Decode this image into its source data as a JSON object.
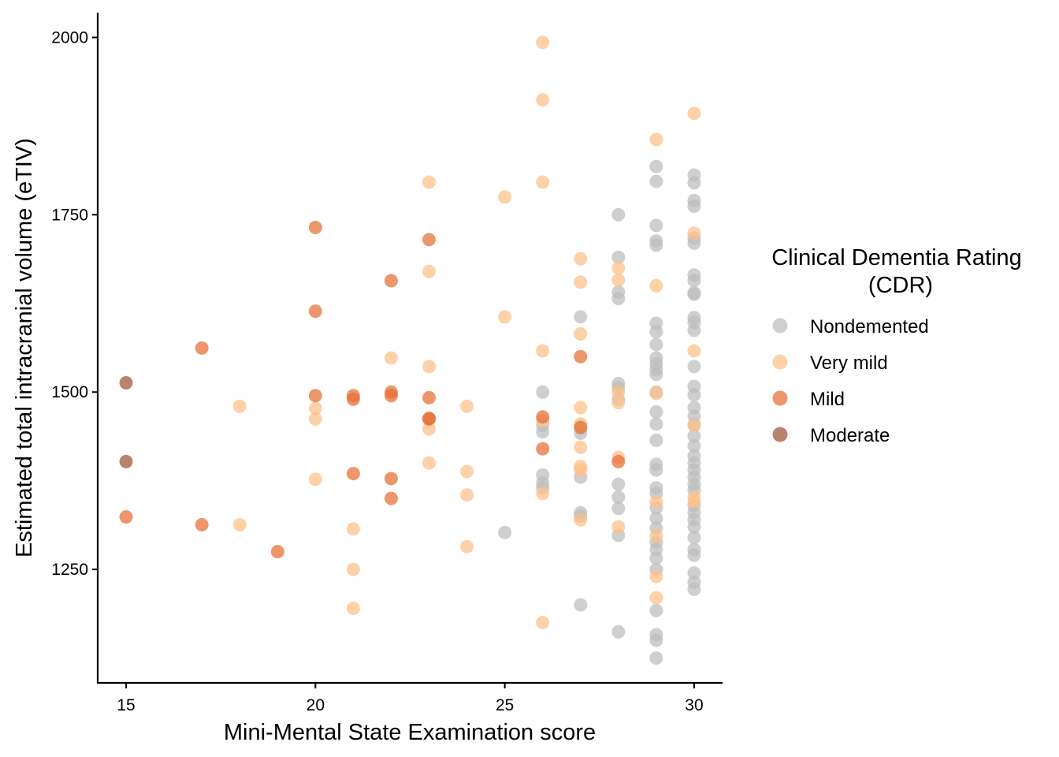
{
  "chart_data": {
    "type": "scatter",
    "xlabel": "Mini-Mental State Examination score",
    "ylabel": "Estimated total intracranial volume (eTIV)",
    "xlim": [
      14.25,
      30.75
    ],
    "ylim": [
      1090,
      2035
    ],
    "x_ticks": [
      15,
      20,
      25,
      30
    ],
    "y_ticks": [
      1250,
      1500,
      1750,
      2000
    ],
    "grid": false,
    "legend": {
      "title_line1": "Clinical Dementia Rating",
      "title_line2": "(CDR)",
      "position": "right"
    },
    "series": [
      {
        "name": "Nondemented",
        "color": "#bdbdbd",
        "points": [
          [
            25,
            1302
          ],
          [
            26,
            1500
          ],
          [
            26,
            1453
          ],
          [
            26,
            1444
          ],
          [
            26,
            1383
          ],
          [
            26,
            1372
          ],
          [
            26,
            1365
          ],
          [
            27,
            1606
          ],
          [
            27,
            1452
          ],
          [
            27,
            1442
          ],
          [
            27,
            1380
          ],
          [
            27,
            1330
          ],
          [
            27,
            1325
          ],
          [
            27,
            1200
          ],
          [
            28,
            1750
          ],
          [
            28,
            1690
          ],
          [
            28,
            1641
          ],
          [
            28,
            1632
          ],
          [
            28,
            1512
          ],
          [
            28,
            1506
          ],
          [
            28,
            1490
          ],
          [
            28,
            1370
          ],
          [
            28,
            1352
          ],
          [
            28,
            1336
          ],
          [
            28,
            1298
          ],
          [
            28,
            1162
          ],
          [
            29,
            1818
          ],
          [
            29,
            1797
          ],
          [
            29,
            1735
          ],
          [
            29,
            1713
          ],
          [
            29,
            1707
          ],
          [
            29,
            1597
          ],
          [
            29,
            1585
          ],
          [
            29,
            1567
          ],
          [
            29,
            1548
          ],
          [
            29,
            1540
          ],
          [
            29,
            1532
          ],
          [
            29,
            1525
          ],
          [
            29,
            1500
          ],
          [
            29,
            1472
          ],
          [
            29,
            1455
          ],
          [
            29,
            1432
          ],
          [
            29,
            1398
          ],
          [
            29,
            1390
          ],
          [
            29,
            1365
          ],
          [
            29,
            1357
          ],
          [
            29,
            1337
          ],
          [
            29,
            1322
          ],
          [
            29,
            1308
          ],
          [
            29,
            1288
          ],
          [
            29,
            1278
          ],
          [
            29,
            1266
          ],
          [
            29,
            1250
          ],
          [
            29,
            1192
          ],
          [
            29,
            1158
          ],
          [
            29,
            1150
          ],
          [
            29,
            1125
          ],
          [
            30,
            1806
          ],
          [
            30,
            1795
          ],
          [
            30,
            1770
          ],
          [
            30,
            1762
          ],
          [
            30,
            1717
          ],
          [
            30,
            1710
          ],
          [
            30,
            1665
          ],
          [
            30,
            1657
          ],
          [
            30,
            1640
          ],
          [
            30,
            1638
          ],
          [
            30,
            1605
          ],
          [
            30,
            1598
          ],
          [
            30,
            1587
          ],
          [
            30,
            1536
          ],
          [
            30,
            1508
          ],
          [
            30,
            1496
          ],
          [
            30,
            1478
          ],
          [
            30,
            1466
          ],
          [
            30,
            1454
          ],
          [
            30,
            1438
          ],
          [
            30,
            1424
          ],
          [
            30,
            1410
          ],
          [
            30,
            1400
          ],
          [
            30,
            1390
          ],
          [
            30,
            1380
          ],
          [
            30,
            1370
          ],
          [
            30,
            1362
          ],
          [
            30,
            1340
          ],
          [
            30,
            1330
          ],
          [
            30,
            1320
          ],
          [
            30,
            1310
          ],
          [
            30,
            1295
          ],
          [
            30,
            1278
          ],
          [
            30,
            1270
          ],
          [
            30,
            1245
          ],
          [
            30,
            1232
          ],
          [
            30,
            1222
          ]
        ]
      },
      {
        "name": "Very mild",
        "color": "#fdbf86",
        "points": [
          [
            18,
            1480
          ],
          [
            18,
            1313
          ],
          [
            20,
            1477
          ],
          [
            20,
            1462
          ],
          [
            20,
            1377
          ],
          [
            21,
            1307
          ],
          [
            21,
            1250
          ],
          [
            21,
            1195
          ],
          [
            22,
            1548
          ],
          [
            23,
            1796
          ],
          [
            23,
            1670
          ],
          [
            23,
            1536
          ],
          [
            23,
            1448
          ],
          [
            23,
            1400
          ],
          [
            24,
            1480
          ],
          [
            24,
            1388
          ],
          [
            24,
            1355
          ],
          [
            24,
            1282
          ],
          [
            25,
            1775
          ],
          [
            25,
            1606
          ],
          [
            26,
            1993
          ],
          [
            26,
            1912
          ],
          [
            26,
            1796
          ],
          [
            26,
            1558
          ],
          [
            26,
            1460
          ],
          [
            26,
            1357
          ],
          [
            26,
            1175
          ],
          [
            27,
            1688
          ],
          [
            27,
            1655
          ],
          [
            27,
            1582
          ],
          [
            27,
            1478
          ],
          [
            27,
            1455
          ],
          [
            27,
            1422
          ],
          [
            27,
            1395
          ],
          [
            27,
            1390
          ],
          [
            27,
            1320
          ],
          [
            28,
            1675
          ],
          [
            28,
            1658
          ],
          [
            28,
            1500
          ],
          [
            28,
            1485
          ],
          [
            28,
            1408
          ],
          [
            28,
            1310
          ],
          [
            29,
            1856
          ],
          [
            29,
            1650
          ],
          [
            29,
            1498
          ],
          [
            29,
            1345
          ],
          [
            29,
            1297
          ],
          [
            29,
            1240
          ],
          [
            29,
            1210
          ],
          [
            30,
            1893
          ],
          [
            30,
            1724
          ],
          [
            30,
            1558
          ],
          [
            30,
            1453
          ],
          [
            30,
            1352
          ],
          [
            30,
            1345
          ]
        ]
      },
      {
        "name": "Mild",
        "color": "#e66e33",
        "points": [
          [
            15,
            1324
          ],
          [
            17,
            1562
          ],
          [
            17,
            1313
          ],
          [
            19,
            1275
          ],
          [
            20,
            1732
          ],
          [
            20,
            1614
          ],
          [
            20,
            1495
          ],
          [
            21,
            1495
          ],
          [
            21,
            1490
          ],
          [
            21,
            1385
          ],
          [
            22,
            1657
          ],
          [
            22,
            1500
          ],
          [
            22,
            1495
          ],
          [
            22,
            1378
          ],
          [
            22,
            1350
          ],
          [
            23,
            1715
          ],
          [
            23,
            1492
          ],
          [
            23,
            1463
          ],
          [
            23,
            1462
          ],
          [
            26,
            1465
          ],
          [
            26,
            1420
          ],
          [
            27,
            1550
          ],
          [
            27,
            1450
          ],
          [
            28,
            1402
          ]
        ]
      },
      {
        "name": "Moderate",
        "color": "#9e5436",
        "points": [
          [
            15,
            1513
          ],
          [
            15,
            1402
          ]
        ]
      }
    ]
  }
}
